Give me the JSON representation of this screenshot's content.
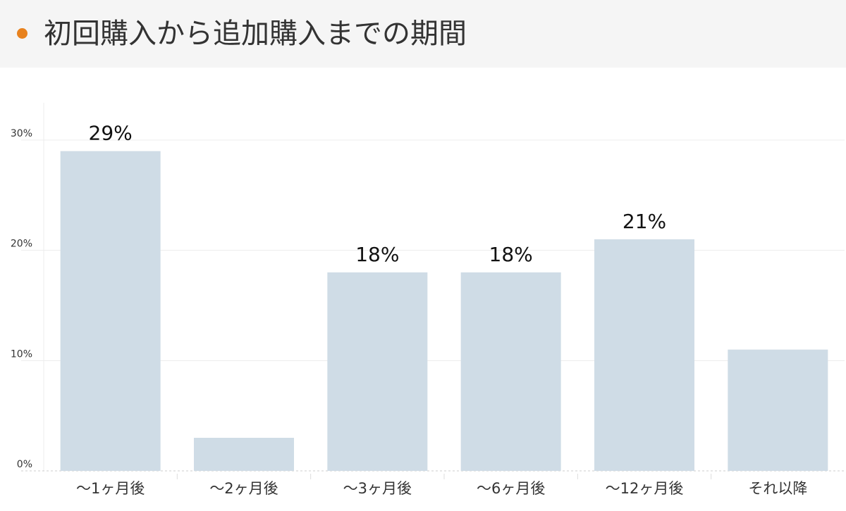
{
  "title": "初回購入から追加購入までの期間",
  "colors": {
    "accent_dot": "#e8821e",
    "bar": "#cfdce6",
    "grid": "#ececec",
    "text": "#333333",
    "label": "#111111"
  },
  "chart_data": {
    "type": "bar",
    "categories": [
      "〜1ヶ月後",
      "〜2ヶ月後",
      "〜3ヶ月後",
      "〜6ヶ月後",
      "〜12ヶ月後",
      "それ以降"
    ],
    "values": [
      29,
      3,
      18,
      18,
      21,
      11
    ],
    "value_unit": "%",
    "data_labels": [
      "29%",
      "",
      "18%",
      "18%",
      "21%",
      ""
    ],
    "yticks": [
      "0%",
      "10%",
      "20%",
      "30%"
    ],
    "ytick_values": [
      0,
      10,
      20,
      30
    ],
    "ylim": [
      0,
      30
    ],
    "grid": true,
    "legend": false
  }
}
